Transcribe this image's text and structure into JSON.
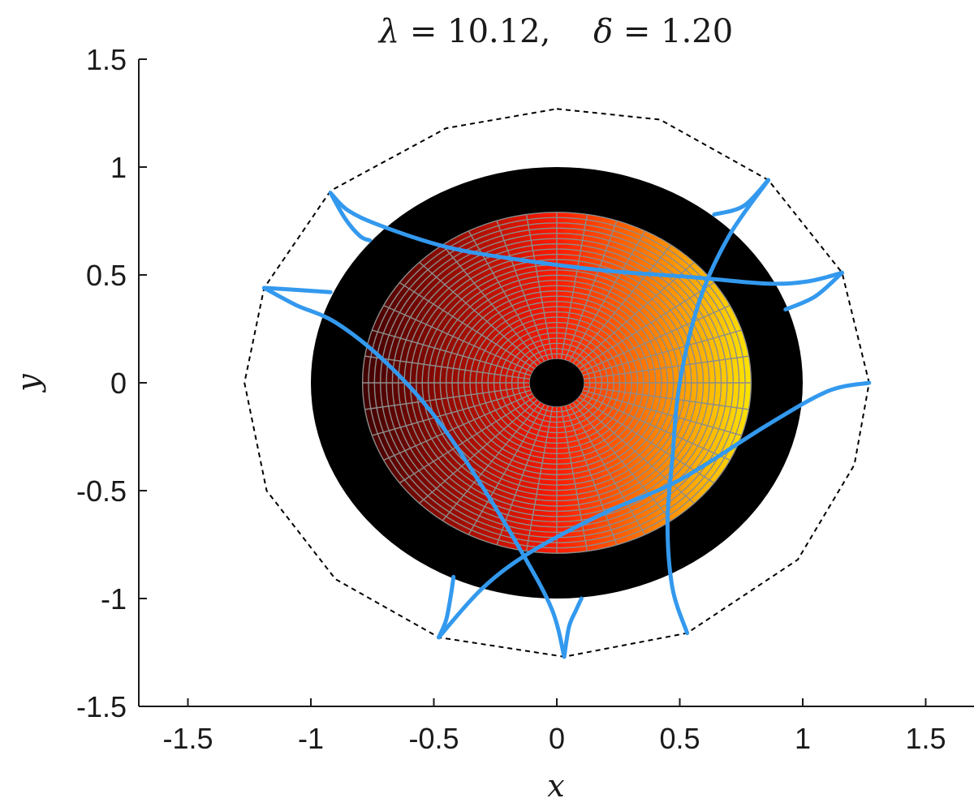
{
  "chart_data": {
    "type": "line",
    "title": {
      "lambda_symbol": "λ",
      "lambda_value": " = 10.12,",
      "delta_symbol": "δ",
      "delta_value": " = 1.20"
    },
    "xlabel": "x",
    "ylabel": "y",
    "xlim": [
      -1.7,
      1.7
    ],
    "ylim": [
      -1.5,
      1.5
    ],
    "x_ticks": [
      -1.5,
      -1,
      -0.5,
      0,
      0.5,
      1,
      1.5
    ],
    "y_ticks": [
      -1.5,
      -1,
      -0.5,
      0,
      0.5,
      1,
      1.5
    ],
    "x_tick_labels": [
      "-1.5",
      "-1",
      "-0.5",
      "0",
      "0.5",
      "1",
      "1.5"
    ],
    "y_tick_labels": [
      "-1.5",
      "-1",
      "-0.5",
      "0",
      "0.5",
      "1",
      "1.5"
    ],
    "grid": false,
    "aspect": "equal",
    "unit_disk": {
      "radius": 1.0,
      "color": "#000000"
    },
    "image_region": {
      "center": [
        0.0,
        0.0
      ],
      "radius": 0.79
    },
    "polar_mesh": {
      "radial_rings": 28,
      "angular_spokes": 40,
      "inner_radius": 0.11,
      "outer_radius": 0.79,
      "line_color": "#8c8c8c"
    },
    "inner_hole": {
      "center": [
        0.0,
        0.0
      ],
      "radius": 0.11,
      "color": "#000000"
    },
    "colormap": {
      "left": "#3d0000",
      "middle": "#ff1a00",
      "right": "#ffe500"
    },
    "dashed_boundary": {
      "style": "dashed",
      "color": "#000000",
      "points": [
        [
          0.0,
          1.27
        ],
        [
          0.42,
          1.22
        ],
        [
          0.86,
          0.94
        ],
        [
          1.16,
          0.51
        ],
        [
          1.27,
          0.0
        ],
        [
          1.21,
          -0.38
        ],
        [
          0.98,
          -0.82
        ],
        [
          0.53,
          -1.16
        ],
        [
          0.03,
          -1.27
        ],
        [
          -0.48,
          -1.18
        ],
        [
          -0.9,
          -0.91
        ],
        [
          -1.18,
          -0.5
        ],
        [
          -1.27,
          0.0
        ],
        [
          -1.19,
          0.44
        ],
        [
          -0.92,
          0.89
        ],
        [
          -0.45,
          1.18
        ]
      ]
    },
    "series": [
      {
        "color": "#3399ee",
        "x": [
          -0.92,
          -0.85,
          -0.72,
          -0.45,
          -0.15,
          0.2,
          0.55,
          0.85,
          1.02,
          1.16
        ],
        "y": [
          0.88,
          0.8,
          0.73,
          0.63,
          0.57,
          0.52,
          0.49,
          0.46,
          0.47,
          0.51
        ]
      },
      {
        "color": "#3399ee",
        "x": [
          -0.92,
          -0.86,
          -0.8,
          -0.76
        ],
        "y": [
          0.88,
          0.76,
          0.68,
          0.66
        ]
      },
      {
        "color": "#3399ee",
        "x": [
          -1.19,
          -1.06,
          -0.9,
          -0.7,
          -0.5,
          -0.32,
          -0.15,
          -0.02,
          0.03
        ],
        "y": [
          0.44,
          0.36,
          0.28,
          0.1,
          -0.15,
          -0.45,
          -0.77,
          -1.05,
          -1.27
        ]
      },
      {
        "color": "#3399ee",
        "x": [
          -1.19,
          -1.05,
          -0.92
        ],
        "y": [
          0.44,
          0.43,
          0.42
        ]
      },
      {
        "color": "#3399ee",
        "x": [
          0.03,
          0.05,
          0.08,
          0.1
        ],
        "y": [
          -1.27,
          -1.13,
          -1.05,
          -1.0
        ]
      },
      {
        "color": "#3399ee",
        "x": [
          -0.48,
          -0.3,
          -0.1,
          0.2,
          0.5,
          0.85,
          1.1,
          1.27
        ],
        "y": [
          -1.18,
          -0.95,
          -0.78,
          -0.6,
          -0.45,
          -0.2,
          -0.04,
          0.0
        ]
      },
      {
        "color": "#3399ee",
        "x": [
          -0.48,
          -0.45,
          -0.43,
          -0.42
        ],
        "y": [
          -1.18,
          -1.1,
          -0.98,
          -0.9
        ]
      },
      {
        "color": "#3399ee",
        "x": [
          0.86,
          0.7,
          0.58,
          0.5,
          0.47,
          0.45,
          0.47,
          0.53
        ],
        "y": [
          0.94,
          0.68,
          0.38,
          0.0,
          -0.35,
          -0.65,
          -0.95,
          -1.16
        ]
      },
      {
        "color": "#3399ee",
        "x": [
          0.86,
          0.76,
          0.64
        ],
        "y": [
          0.94,
          0.82,
          0.78
        ]
      },
      {
        "color": "#3399ee",
        "x": [
          1.16,
          1.05,
          0.93
        ],
        "y": [
          0.51,
          0.4,
          0.34
        ]
      }
    ]
  }
}
